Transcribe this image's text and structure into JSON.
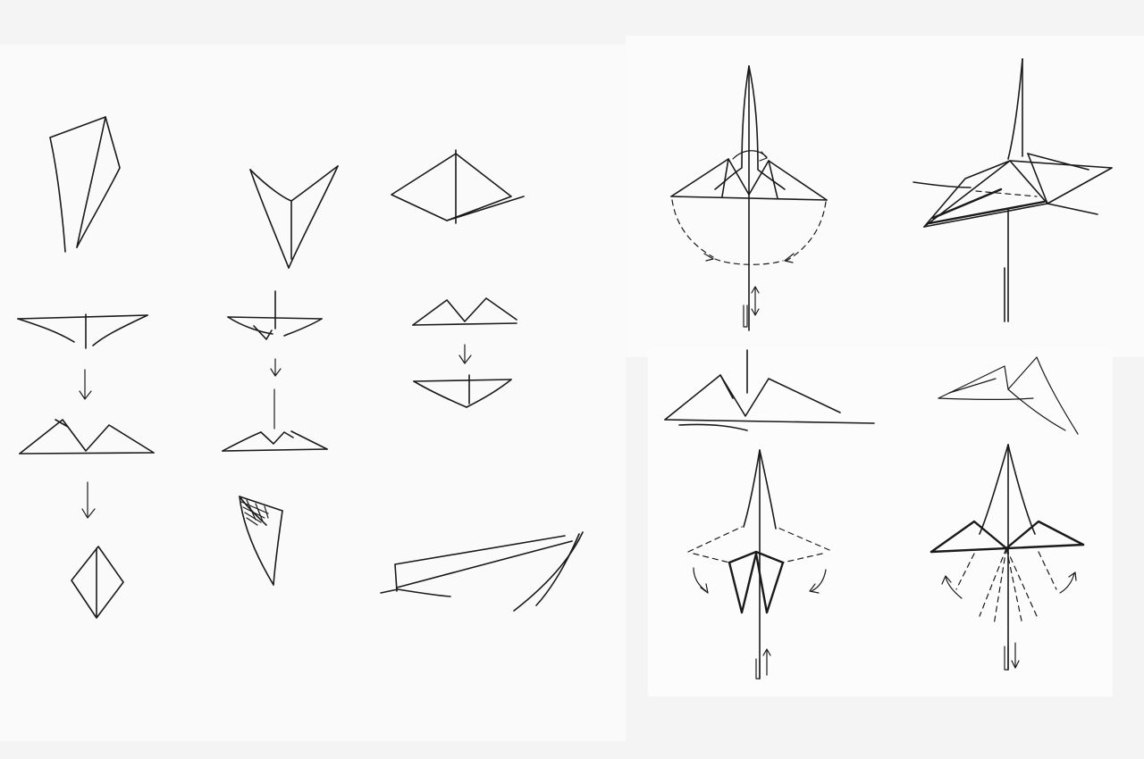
{
  "colors": {
    "paper": "#f4f4f4",
    "paper_panel": "#fbfbfb",
    "ink": "#1a1a1a",
    "pencil": "#7a7a7a"
  },
  "panels": [
    "left-sketch-panel",
    "right-upper-panel",
    "right-lower-panel"
  ]
}
